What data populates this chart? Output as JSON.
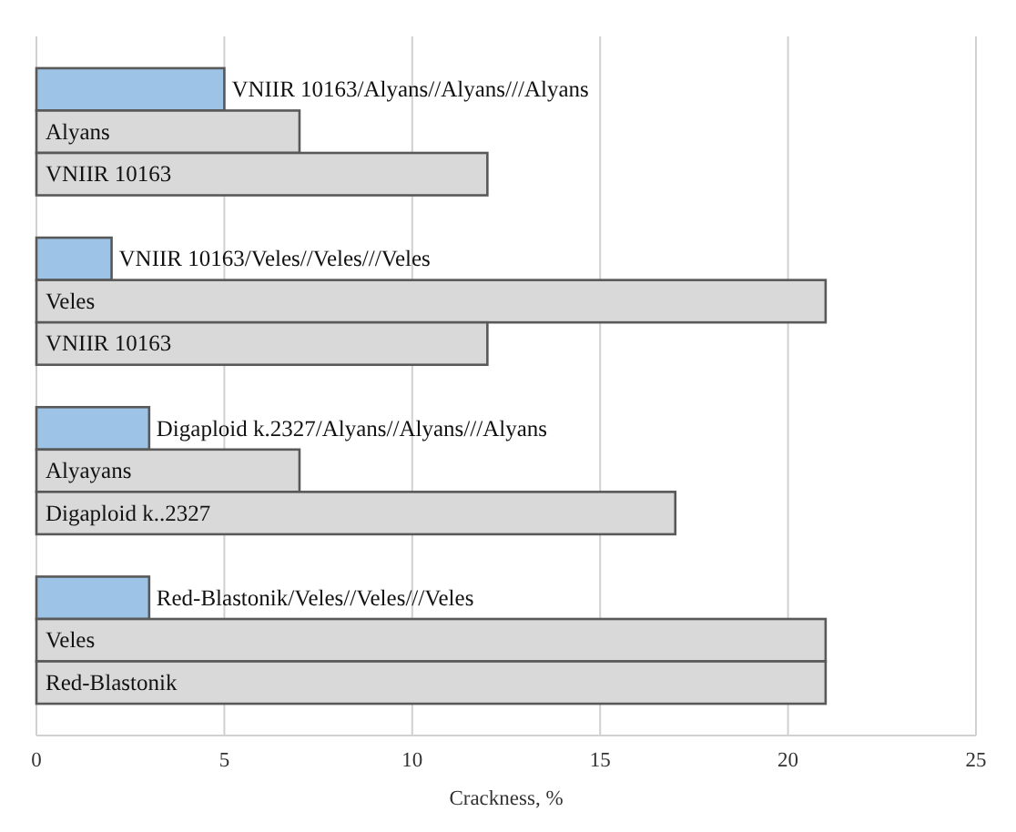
{
  "chart_data": {
    "type": "bar",
    "orientation": "horizontal",
    "xlabel": "Crackness, %",
    "categories": [
      "VNIIR 10163/Alyans//Alyans///Alyans",
      "Alyans",
      "VNIIR 10163",
      null,
      "VNIIR 10163/Veles//Veles///Veles",
      "Veles",
      "VNIIR 10163",
      null,
      "Digaploid k.2327/Alyans//Alyans///Alyans",
      "Alyayans",
      "Digaploid k..2327",
      null,
      "Red-Blastonik/Veles//Veles///Veles",
      "Veles",
      "Red-Blastonik"
    ],
    "values": [
      5,
      7,
      12,
      null,
      2,
      21,
      12,
      null,
      3,
      7,
      17,
      null,
      3,
      21,
      21
    ],
    "colors": [
      "#9dc3e6",
      "#d9d9d9",
      "#d9d9d9",
      null,
      "#9dc3e6",
      "#d9d9d9",
      "#d9d9d9",
      null,
      "#9dc3e6",
      "#d9d9d9",
      "#d9d9d9",
      null,
      "#9dc3e6",
      "#d9d9d9",
      "#d9d9d9"
    ],
    "xlim": [
      0,
      25
    ],
    "xticks": [
      0,
      5,
      10,
      15,
      20,
      25
    ],
    "grid": "x"
  }
}
